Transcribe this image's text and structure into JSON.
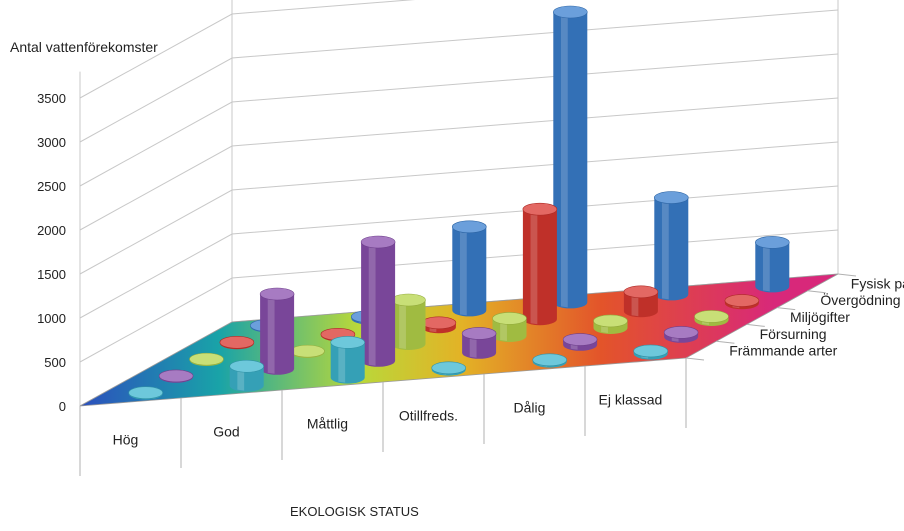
{
  "chart_data": {
    "type": "bar",
    "subtype": "3d-cylinder",
    "title": "",
    "ylabel": "Antal vattenförekomster",
    "xlabel": "EKOLOGISK STATUS",
    "ylim": [
      0,
      3500
    ],
    "yticks": [
      "0",
      "500",
      "1000",
      "1500",
      "2000",
      "2500",
      "3000",
      "3500"
    ],
    "grid": true,
    "categories": [
      "Hög",
      "God",
      "Måttlig",
      "Otillfreds.",
      "Dålig",
      "Ej klassad"
    ],
    "series": [
      {
        "name": "Främmande arter",
        "color": "#3cb6cf",
        "values": [
          10,
          220,
          400,
          20,
          20,
          30
        ]
      },
      {
        "name": "Försurning",
        "color": "#8a4fae",
        "values": [
          10,
          850,
          1350,
          220,
          60,
          50
        ]
      },
      {
        "name": "Miljögifter",
        "color": "#b6d44a",
        "values": [
          10,
          10,
          500,
          200,
          80,
          40
        ]
      },
      {
        "name": "Övergödning",
        "color": "#d9362f",
        "values": [
          10,
          10,
          50,
          1250,
          220,
          30
        ]
      },
      {
        "name": "Fysisk påverkan",
        "color": "#3a7fcf",
        "values": [
          10,
          20,
          950,
          3300,
          1100,
          500
        ]
      }
    ]
  }
}
